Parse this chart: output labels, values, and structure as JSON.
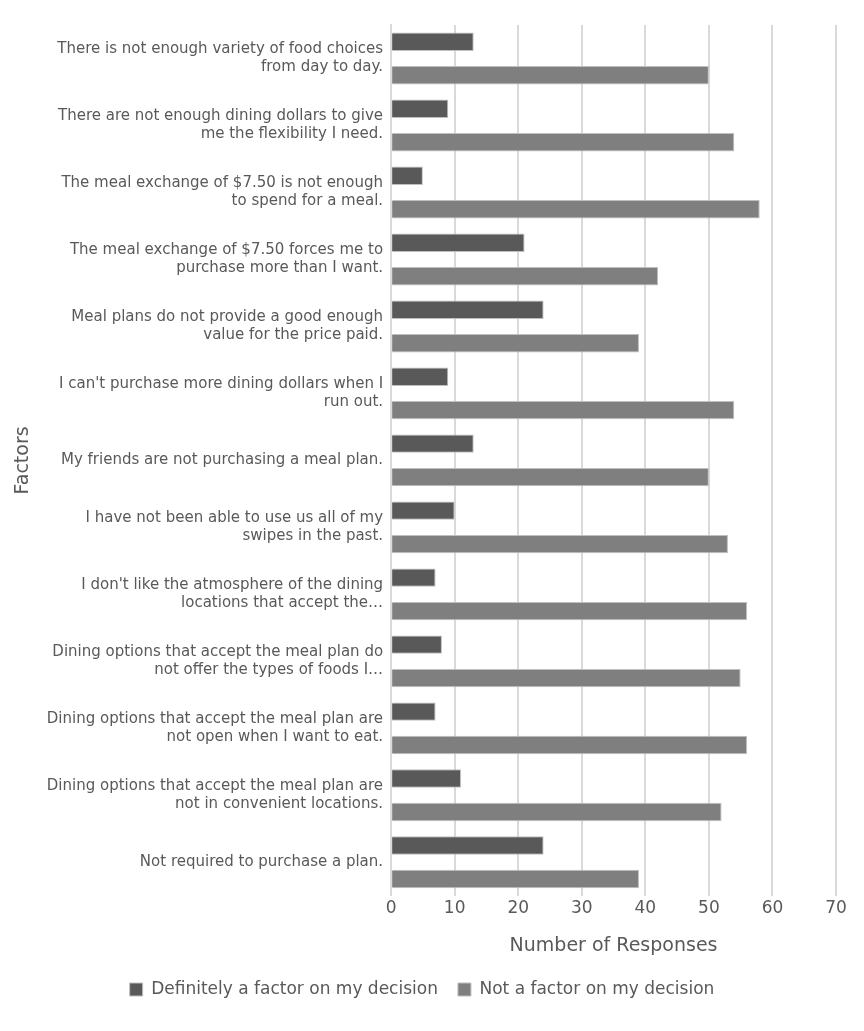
{
  "chart_data": {
    "type": "bar",
    "orientation": "horizontal",
    "xlabel": "Number of Responses",
    "ylabel": "Factors",
    "categories": [
      "There is not enough variety of food choices from day to day.",
      "There are not enough dining dollars to give me the flexibility I need.",
      "The meal exchange of $7.50 is not enough to spend for a meal.",
      "The meal exchange of $7.50 forces me to purchase more than I want.",
      "Meal plans do not provide a good enough value for the price paid.",
      "I can't purchase more dining dollars when I run out.",
      "My friends are not purchasing a meal plan.",
      "I have not been able to use us all of my swipes in the past.",
      "I don't like the atmosphere of the dining locations that accept the…",
      "Dining options that accept the meal plan do not offer the types of foods I…",
      "Dining options that accept the meal plan are not open when I want to eat.",
      "Dining options that accept the meal plan are not in convenient locations.",
      "Not required to purchase a plan."
    ],
    "series": [
      {
        "name": "Definitely a factor on my decision",
        "color": "#595959",
        "values": [
          13,
          9,
          5,
          21,
          24,
          9,
          13,
          10,
          7,
          8,
          7,
          11,
          24
        ]
      },
      {
        "name": "Not a factor on my decision",
        "color": "#7f7f7f",
        "values": [
          50,
          54,
          58,
          42,
          39,
          54,
          50,
          53,
          56,
          55,
          56,
          52,
          39
        ]
      }
    ],
    "xlim": [
      0,
      70
    ],
    "xticks": [
      0,
      10,
      20,
      30,
      40,
      50,
      60,
      70
    ],
    "grid": "x",
    "legend": "bottom"
  }
}
